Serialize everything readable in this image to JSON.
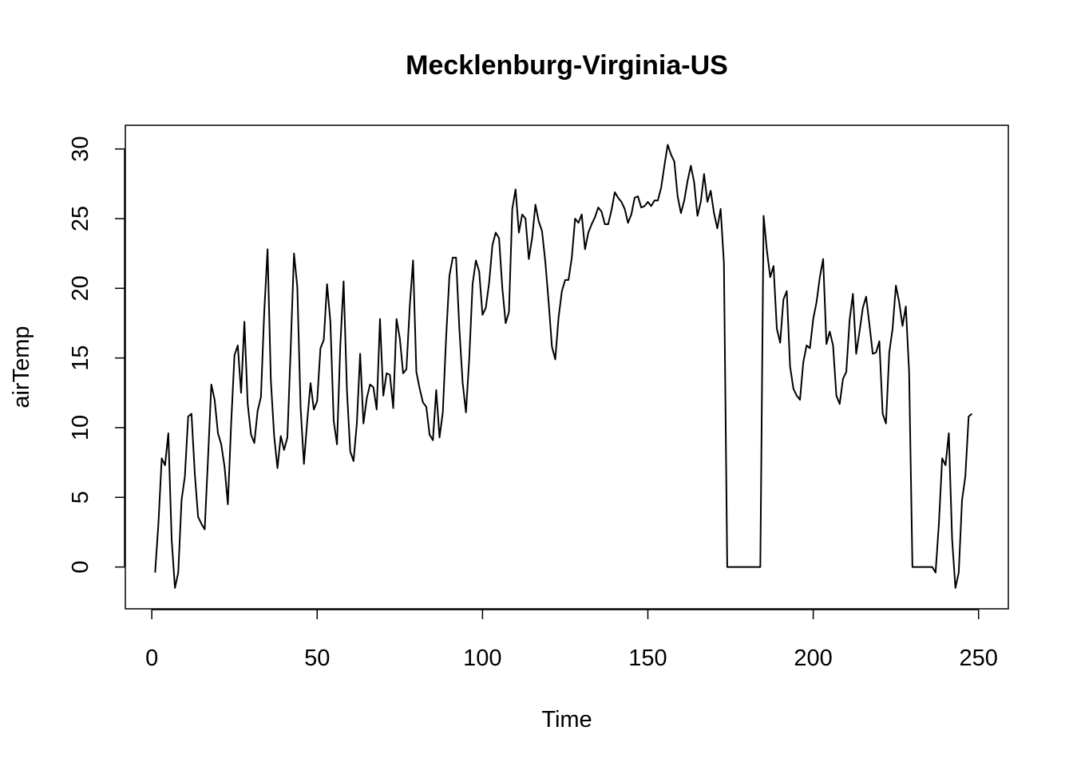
{
  "chart_data": {
    "type": "line",
    "title": "Mecklenburg-Virginia-US",
    "xlabel": "Time",
    "ylabel": "airTemp",
    "xlim": [
      -8,
      259
    ],
    "ylim": [
      -3,
      31.7
    ],
    "x_ticks": [
      0,
      50,
      100,
      150,
      200,
      250
    ],
    "y_ticks": [
      0,
      5,
      10,
      15,
      20,
      25,
      30
    ],
    "grid": false,
    "legend": "none",
    "line_color": "#000000",
    "series": [
      {
        "x": [
          1,
          2,
          3,
          4,
          5,
          6,
          7,
          8,
          9,
          10,
          11,
          12,
          13,
          14,
          15,
          16,
          17,
          18,
          19,
          20,
          21,
          22,
          23,
          24,
          25,
          26,
          27,
          28,
          29,
          30,
          31,
          32,
          33,
          34,
          35,
          36,
          37,
          38,
          39,
          40,
          41,
          42,
          43,
          44,
          45,
          46,
          47,
          48,
          49,
          50,
          51,
          52,
          53,
          54,
          55,
          56,
          57,
          58,
          59,
          60,
          61,
          62,
          63,
          64,
          65,
          66,
          67,
          68,
          69,
          70,
          71,
          72,
          73,
          74,
          75,
          76,
          77,
          78,
          79,
          80,
          81,
          82,
          83,
          84,
          85,
          86,
          87,
          88,
          89,
          90,
          91,
          92,
          93,
          94,
          95,
          96,
          97,
          98,
          99,
          100,
          101,
          102,
          103,
          104,
          105,
          106,
          107,
          108,
          109,
          110,
          111,
          112,
          113,
          114,
          115,
          116,
          117,
          118,
          119,
          120,
          121,
          122,
          123,
          124,
          125,
          126,
          127,
          128,
          129,
          130,
          131,
          132,
          133,
          134,
          135,
          136,
          137,
          138,
          139,
          140,
          141,
          142,
          143,
          144,
          145,
          146,
          147,
          148,
          149,
          150,
          151,
          152,
          153,
          154,
          155,
          156,
          157,
          158,
          159,
          160,
          161,
          162,
          163,
          164,
          165,
          166,
          167,
          168,
          169,
          170,
          171,
          172,
          173,
          174,
          175,
          176,
          177,
          178,
          179,
          180,
          181,
          182,
          183,
          184,
          185,
          186,
          187,
          188,
          189,
          190,
          191,
          192,
          193,
          194,
          195,
          196,
          197,
          198,
          199,
          200,
          201,
          202,
          203,
          204,
          205,
          206,
          207,
          208,
          209,
          210,
          211,
          212,
          213,
          214,
          215,
          216,
          217,
          218,
          219,
          220,
          221,
          222,
          223,
          224,
          225,
          226,
          227,
          228,
          229,
          230,
          231,
          232,
          233,
          234,
          235,
          236,
          237,
          238,
          239,
          240,
          241,
          242,
          243,
          244,
          245,
          246,
          247,
          248
        ],
        "y": [
          -0.4,
          3.1,
          7.8,
          7.3,
          9.6,
          2.0,
          -1.5,
          -0.4,
          4.8,
          6.5,
          10.8,
          11.0,
          6.7,
          3.6,
          3.1,
          2.7,
          7.8,
          13.1,
          12.0,
          9.6,
          8.8,
          7.2,
          4.5,
          10.3,
          15.2,
          15.9,
          12.5,
          17.6,
          11.7,
          9.5,
          8.9,
          11.2,
          12.2,
          18.3,
          22.8,
          13.4,
          9.4,
          7.1,
          9.4,
          8.4,
          9.3,
          15.7,
          22.5,
          20.1,
          11.4,
          7.4,
          10.5,
          13.2,
          11.3,
          11.9,
          15.7,
          16.3,
          20.3,
          17.6,
          10.5,
          8.8,
          15.9,
          20.5,
          12.7,
          8.3,
          7.6,
          10.3,
          15.3,
          10.3,
          12.1,
          13.1,
          12.9,
          11.3,
          17.8,
          12.3,
          13.9,
          13.8,
          11.4,
          17.8,
          16.4,
          13.9,
          14.2,
          18.7,
          22.0,
          14.0,
          12.8,
          11.8,
          11.5,
          9.5,
          9.1,
          12.7,
          9.3,
          11.1,
          16.5,
          20.9,
          22.2,
          22.2,
          17.1,
          13.2,
          11.1,
          15.0,
          20.3,
          22.0,
          21.2,
          18.1,
          18.6,
          20.4,
          23.1,
          24.0,
          23.6,
          20.0,
          17.5,
          18.3,
          25.7,
          27.1,
          24.0,
          25.3,
          25.0,
          22.1,
          23.6,
          26.0,
          24.8,
          24.1,
          21.9,
          19.0,
          15.8,
          14.9,
          17.9,
          19.8,
          20.6,
          20.6,
          22.2,
          25.0,
          24.7,
          25.3,
          22.8,
          24.0,
          24.6,
          25.1,
          25.8,
          25.5,
          24.6,
          24.6,
          25.6,
          26.9,
          26.5,
          26.2,
          25.7,
          24.7,
          25.3,
          26.5,
          26.6,
          25.8,
          25.9,
          26.2,
          25.9,
          26.3,
          26.3,
          27.2,
          28.8,
          30.3,
          29.6,
          29.1,
          26.6,
          25.4,
          26.3,
          27.7,
          28.8,
          27.6,
          25.2,
          26.2,
          28.2,
          26.2,
          27.0,
          25.4,
          24.3,
          25.7,
          21.8,
          0,
          0,
          0,
          0,
          0,
          0,
          0,
          0,
          0,
          0,
          0,
          25.2,
          22.7,
          20.8,
          21.6,
          17.1,
          16.1,
          19.2,
          19.8,
          14.4,
          12.8,
          12.3,
          12.0,
          14.7,
          15.9,
          15.7,
          17.8,
          19.0,
          20.8,
          22.1,
          16.0,
          16.9,
          15.9,
          12.3,
          11.7,
          13.5,
          14.0,
          17.7,
          19.6,
          15.3,
          16.9,
          18.6,
          19.4,
          17.4,
          15.3,
          15.4,
          16.2,
          11.0,
          10.3,
          15.4,
          17.1,
          20.2,
          19.0,
          17.3,
          18.7,
          14.0,
          0,
          0,
          0,
          0,
          0,
          0,
          0,
          -0.4,
          3.1,
          7.8,
          7.3,
          9.6,
          2.0,
          -1.5,
          -0.4,
          4.8,
          6.5,
          10.8,
          11.0
        ]
      }
    ]
  }
}
